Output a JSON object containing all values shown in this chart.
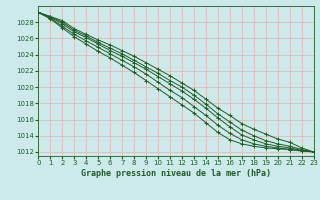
{
  "title": "Graphe pression niveau de la mer (hPa)",
  "bg_color": "#cceaea",
  "grid_color": "#e8b0b0",
  "line_color": "#1e5c28",
  "xlim": [
    0,
    23
  ],
  "ylim": [
    1011.5,
    1030.0
  ],
  "yticks": [
    1012,
    1014,
    1016,
    1018,
    1020,
    1022,
    1024,
    1026,
    1028
  ],
  "xticks": [
    0,
    1,
    2,
    3,
    4,
    5,
    6,
    7,
    8,
    9,
    10,
    11,
    12,
    13,
    14,
    15,
    16,
    17,
    18,
    19,
    20,
    21,
    22,
    23
  ],
  "series": [
    [
      1029.2,
      1028.7,
      1028.2,
      1027.2,
      1026.5,
      1025.8,
      1025.2,
      1024.5,
      1023.8,
      1023.0,
      1022.2,
      1021.4,
      1020.5,
      1019.6,
      1018.5,
      1017.4,
      1016.5,
      1015.5,
      1014.8,
      1014.2,
      1013.6,
      1013.2,
      1012.5,
      1012.0
    ],
    [
      1029.2,
      1028.7,
      1028.0,
      1027.0,
      1026.3,
      1025.5,
      1024.8,
      1024.1,
      1023.3,
      1022.5,
      1021.7,
      1020.8,
      1020.0,
      1019.0,
      1017.9,
      1016.7,
      1015.7,
      1014.7,
      1014.0,
      1013.4,
      1013.0,
      1012.7,
      1012.3,
      1012.0
    ],
    [
      1029.2,
      1028.6,
      1027.8,
      1026.8,
      1026.1,
      1025.3,
      1024.5,
      1023.8,
      1023.0,
      1022.2,
      1021.3,
      1020.4,
      1019.5,
      1018.5,
      1017.4,
      1016.2,
      1015.1,
      1014.1,
      1013.5,
      1013.0,
      1012.7,
      1012.5,
      1012.2,
      1012.0
    ],
    [
      1029.2,
      1028.5,
      1027.5,
      1026.5,
      1025.7,
      1024.9,
      1024.1,
      1023.3,
      1022.5,
      1021.6,
      1020.6,
      1019.6,
      1018.7,
      1017.6,
      1016.5,
      1015.3,
      1014.3,
      1013.5,
      1013.0,
      1012.7,
      1012.5,
      1012.3,
      1012.2,
      1012.0
    ],
    [
      1029.2,
      1028.4,
      1027.3,
      1026.2,
      1025.3,
      1024.4,
      1023.6,
      1022.7,
      1021.8,
      1020.8,
      1019.8,
      1018.8,
      1017.8,
      1016.8,
      1015.6,
      1014.4,
      1013.5,
      1013.0,
      1012.7,
      1012.5,
      1012.4,
      1012.3,
      1012.1,
      1012.0
    ]
  ]
}
